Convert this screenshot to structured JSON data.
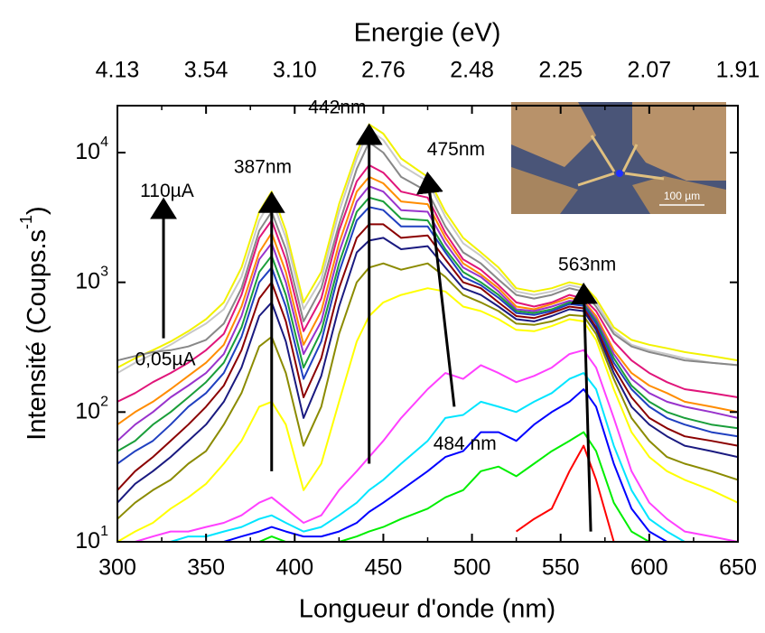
{
  "chart_data": {
    "type": "line",
    "title": "Energie (eV)",
    "x_label": "Longueur d'onde (nm)",
    "y_label": "Intensité (Coups.s",
    "y_label_sup": "-1",
    "y_label_end": ")",
    "log_y": true,
    "xlim": [
      300,
      650
    ],
    "xticks": [
      300,
      350,
      400,
      450,
      500,
      550,
      600,
      650
    ],
    "x2tick_labels": [
      "4.13",
      "3.54",
      "3.10",
      "2.76",
      "2.48",
      "2.25",
      "2.07",
      "1.91"
    ],
    "ylim": [
      10,
      23000
    ],
    "yticks": [
      {
        "value": 10,
        "label": "10",
        "exponent": "1"
      },
      {
        "value": 100,
        "label": "10",
        "exponent": "2"
      },
      {
        "value": 1000,
        "label": "10",
        "exponent": "3"
      },
      {
        "value": 10000,
        "label": "10",
        "exponent": "4"
      }
    ],
    "x": [
      300,
      310,
      320,
      330,
      340,
      350,
      360,
      370,
      380,
      387,
      395,
      405,
      415,
      425,
      435,
      442,
      450,
      460,
      475,
      485,
      495,
      505,
      515,
      525,
      535,
      545,
      555,
      563,
      570,
      580,
      590,
      600,
      610,
      620,
      635,
      650
    ],
    "series": [
      {
        "color": "#f2f200",
        "values": [
          220,
          260,
          300,
          350,
          420,
          520,
          700,
          1300,
          3500,
          5000,
          2500,
          700,
          1200,
          4000,
          10000,
          16500,
          14000,
          9000,
          6500,
          3500,
          2200,
          1700,
          1300,
          900,
          850,
          900,
          1000,
          950,
          750,
          450,
          360,
          330,
          310,
          290,
          270,
          250
        ]
      },
      {
        "color": "#c8c8c8",
        "values": [
          200,
          240,
          280,
          330,
          400,
          480,
          620,
          1100,
          3000,
          4400,
          2200,
          620,
          1050,
          3500,
          9000,
          15000,
          12500,
          8000,
          6000,
          3200,
          2000,
          1600,
          1200,
          850,
          800,
          850,
          950,
          900,
          700,
          420,
          330,
          300,
          280,
          260,
          240,
          230
        ]
      },
      {
        "color": "#888888",
        "values": [
          250,
          270,
          290,
          300,
          320,
          360,
          480,
          900,
          2500,
          3500,
          1800,
          500,
          900,
          2800,
          7500,
          12000,
          10000,
          6500,
          5000,
          2700,
          1700,
          1400,
          1050,
          800,
          750,
          800,
          900,
          850,
          650,
          400,
          320,
          290,
          270,
          250,
          240,
          230
        ]
      },
      {
        "color": "#e0157a",
        "values": [
          120,
          140,
          170,
          200,
          240,
          300,
          400,
          800,
          2200,
          3000,
          1500,
          420,
          750,
          2500,
          6000,
          8000,
          7000,
          5000,
          4500,
          2400,
          1500,
          1250,
          950,
          700,
          650,
          700,
          800,
          750,
          600,
          350,
          250,
          200,
          170,
          150,
          140,
          130
        ]
      },
      {
        "color": "#ff8c00",
        "values": [
          80,
          100,
          120,
          150,
          190,
          240,
          330,
          650,
          1700,
          2400,
          1200,
          330,
          600,
          2000,
          5000,
          6500,
          5800,
          4200,
          4000,
          2200,
          1400,
          1150,
          900,
          650,
          620,
          680,
          760,
          720,
          550,
          300,
          200,
          160,
          140,
          120,
          110,
          100
        ]
      },
      {
        "color": "#9933cc",
        "values": [
          60,
          80,
          100,
          130,
          160,
          200,
          280,
          550,
          1500,
          2000,
          1000,
          280,
          500,
          1700,
          4200,
          5500,
          5000,
          3600,
          3500,
          2000,
          1300,
          1100,
          850,
          620,
          600,
          650,
          720,
          700,
          520,
          280,
          180,
          140,
          120,
          110,
          100,
          90
        ]
      },
      {
        "color": "#1a9e3a",
        "values": [
          50,
          60,
          80,
          100,
          130,
          170,
          240,
          450,
          1200,
          1600,
          800,
          220,
          420,
          1400,
          3500,
          4500,
          4200,
          3100,
          3000,
          1800,
          1200,
          1000,
          800,
          600,
          580,
          620,
          700,
          680,
          500,
          260,
          160,
          120,
          100,
          90,
          80,
          75
        ]
      },
      {
        "color": "#2040c0",
        "values": [
          40,
          50,
          60,
          80,
          110,
          140,
          200,
          380,
          1000,
          1300,
          650,
          180,
          350,
          1200,
          3000,
          3800,
          3600,
          2700,
          2700,
          1700,
          1100,
          950,
          760,
          580,
          560,
          600,
          680,
          660,
          480,
          240,
          150,
          110,
          90,
          80,
          70,
          65
        ]
      },
      {
        "color": "#8b0000",
        "values": [
          25,
          35,
          45,
          60,
          80,
          110,
          160,
          300,
          750,
          1000,
          500,
          130,
          260,
          900,
          2200,
          2800,
          2800,
          2200,
          2300,
          1500,
          1000,
          900,
          700,
          550,
          530,
          580,
          650,
          630,
          450,
          220,
          130,
          90,
          75,
          65,
          60,
          55
        ]
      },
      {
        "color": "#1a1a80",
        "values": [
          20,
          28,
          35,
          45,
          60,
          80,
          120,
          220,
          550,
          700,
          350,
          90,
          190,
          650,
          1700,
          2100,
          2200,
          1800,
          1900,
          1300,
          900,
          800,
          650,
          520,
          500,
          550,
          620,
          600,
          430,
          200,
          110,
          80,
          65,
          55,
          50,
          45
        ]
      },
      {
        "color": "#8b8b00",
        "values": [
          15,
          20,
          25,
          30,
          40,
          50,
          80,
          140,
          320,
          380,
          200,
          55,
          110,
          400,
          1000,
          1300,
          1400,
          1250,
          1400,
          1100,
          800,
          700,
          600,
          480,
          470,
          500,
          560,
          550,
          400,
          180,
          90,
          60,
          45,
          40,
          35,
          30
        ]
      },
      {
        "color": "#ffff00",
        "values": [
          10,
          12,
          14,
          18,
          22,
          28,
          40,
          60,
          110,
          120,
          80,
          25,
          40,
          120,
          350,
          550,
          700,
          800,
          900,
          850,
          650,
          600,
          520,
          430,
          420,
          460,
          520,
          500,
          360,
          150,
          70,
          45,
          35,
          30,
          25,
          20
        ]
      },
      {
        "color": "#ff40ff",
        "values": [
          10,
          10,
          11,
          12,
          12,
          13,
          14,
          16,
          20,
          22,
          18,
          14,
          16,
          25,
          35,
          45,
          60,
          90,
          150,
          200,
          180,
          230,
          200,
          170,
          190,
          220,
          280,
          300,
          220,
          90,
          35,
          20,
          15,
          12,
          11,
          10
        ]
      },
      {
        "color": "#00e5ff",
        "values": [
          10,
          10,
          10,
          10,
          11,
          11,
          12,
          13,
          15,
          16,
          14,
          12,
          13,
          16,
          20,
          25,
          30,
          40,
          60,
          90,
          95,
          120,
          110,
          100,
          120,
          140,
          180,
          200,
          150,
          55,
          25,
          15,
          12,
          10,
          10,
          10
        ]
      },
      {
        "color": "#0000ff",
        "values": [
          10,
          10,
          10,
          10,
          10,
          10,
          10,
          11,
          12,
          13,
          12,
          11,
          11,
          12,
          14,
          17,
          20,
          25,
          35,
          45,
          50,
          70,
          70,
          60,
          80,
          100,
          120,
          150,
          110,
          40,
          18,
          12,
          10,
          10,
          10,
          10
        ]
      },
      {
        "color": "#00ee00",
        "values": [
          10,
          10,
          10,
          10,
          10,
          10,
          10,
          10,
          10,
          11,
          10,
          10,
          10,
          10,
          11,
          12,
          13,
          15,
          18,
          22,
          25,
          35,
          38,
          32,
          40,
          50,
          60,
          70,
          50,
          20,
          12,
          10,
          10,
          10,
          10,
          10
        ]
      },
      {
        "color": "#ff0000",
        "values": [
          null,
          null,
          null,
          null,
          null,
          null,
          null,
          null,
          null,
          null,
          null,
          null,
          null,
          null,
          null,
          null,
          null,
          null,
          null,
          null,
          null,
          null,
          null,
          12,
          15,
          18,
          35,
          55,
          30,
          10,
          null,
          null,
          null,
          null,
          null,
          null
        ]
      }
    ],
    "arrows": [
      {
        "x": [
          387,
          387
        ],
        "y": [
          35,
          4800
        ]
      },
      {
        "x": [
          442,
          442
        ],
        "y": [
          40,
          16000
        ]
      },
      {
        "x": [
          490,
          475
        ],
        "y": [
          110,
          6800
        ]
      },
      {
        "x": [
          567,
          563
        ],
        "y": [
          12,
          950
        ]
      },
      {
        "x": [
          326,
          326
        ],
        "y": [
          370,
          4300
        ]
      }
    ],
    "annotations": [
      {
        "text": "387nm",
        "x": 382,
        "y": 7600
      },
      {
        "text": "442nm",
        "x": 424,
        "y": 22000
      },
      {
        "text": "475nm",
        "x": 491,
        "y": 10400
      },
      {
        "text": "563nm",
        "x": 565,
        "y": 1350
      },
      {
        "text": "484 nm",
        "x": 496,
        "y": 56
      },
      {
        "text": "110µA",
        "x": 328,
        "y": 5000
      },
      {
        "text": "0,05µA",
        "x": 327,
        "y": 250
      }
    ],
    "inset_scale": "100 µm"
  }
}
